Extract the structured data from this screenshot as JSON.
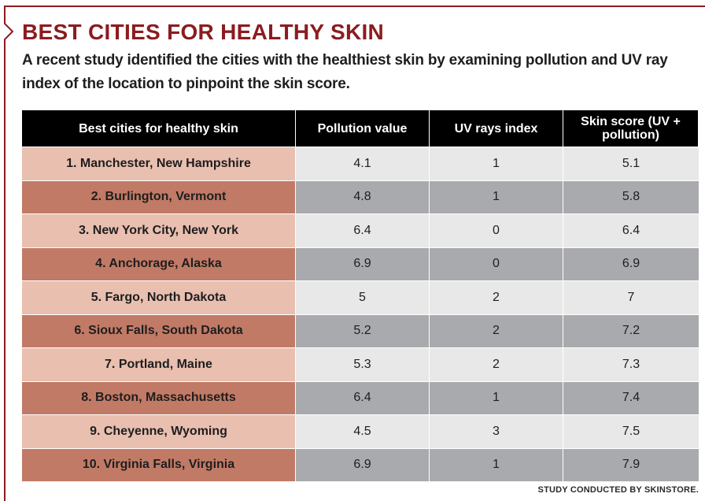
{
  "title": "BEST CITIES FOR HEALTHY SKIN",
  "subtitle": "A recent study identified the cities with the healthiest skin by examining pollution and UV ray index of the location to pinpoint the skin score.",
  "source": "STUDY CONDUCTED BY SKINSTORE.",
  "colors": {
    "title": "#8b1c20",
    "frame": "#8b1c20",
    "header_bg": "#000000",
    "city_light": "#e9bfb0",
    "city_dark": "#c17a66",
    "value_light": "#e8e8e9",
    "value_dark": "#a9aaad"
  },
  "chart_data": {
    "type": "table",
    "title": "BEST CITIES FOR HEALTHY SKIN",
    "columns": [
      "Best cities for healthy skin",
      "Pollution value",
      "UV rays index",
      "Skin score (UV + pollution)"
    ],
    "rows": [
      [
        "1. Manchester, New Hampshire",
        "4.1",
        "1",
        "5.1"
      ],
      [
        "2. Burlington, Vermont",
        "4.8",
        "1",
        "5.8"
      ],
      [
        "3. New York City, New York",
        "6.4",
        "0",
        "6.4"
      ],
      [
        "4. Anchorage, Alaska",
        "6.9",
        "0",
        "6.9"
      ],
      [
        "5. Fargo, North Dakota",
        "5",
        "2",
        "7"
      ],
      [
        "6. Sioux Falls, South Dakota",
        "5.2",
        "2",
        "7.2"
      ],
      [
        "7. Portland, Maine",
        "5.3",
        "2",
        "7.3"
      ],
      [
        "8. Boston, Massachusetts",
        "6.4",
        "1",
        "7.4"
      ],
      [
        "9. Cheyenne, Wyoming",
        "4.5",
        "3",
        "7.5"
      ],
      [
        "10. Virginia Falls, Virginia",
        "6.9",
        "1",
        "7.9"
      ]
    ]
  }
}
